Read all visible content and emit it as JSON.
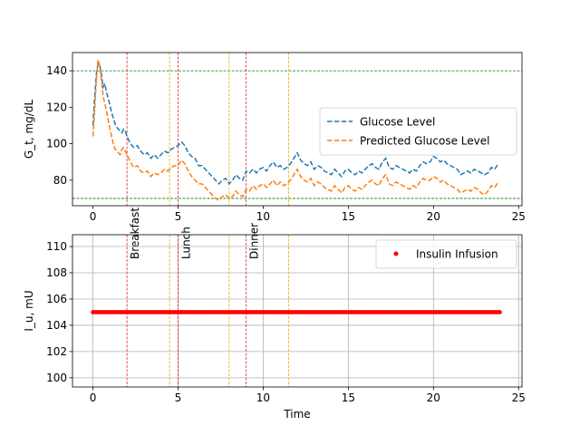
{
  "chart_data": [
    {
      "type": "line",
      "xlabel": "",
      "ylabel": "G_t, mg/dL",
      "xlim": [
        -1.2,
        25.2
      ],
      "ylim": [
        66,
        150
      ],
      "xticks": [
        0,
        5,
        10,
        15,
        20,
        25
      ],
      "yticks": [
        80,
        100,
        120,
        140
      ],
      "legend": {
        "placement": "center-right",
        "entries": [
          "Glucose Level",
          "Predicted Glucose Level"
        ]
      },
      "thresholds": [
        {
          "y": 140,
          "color": "#008000",
          "style": "dashed"
        },
        {
          "y": 70,
          "color": "#008000",
          "style": "dashed"
        }
      ],
      "meal_lines": [
        {
          "x": 2.0,
          "color": "#d62728",
          "label": "Breakfast"
        },
        {
          "x": 5.0,
          "color": "#d62728",
          "label": "Lunch"
        },
        {
          "x": 9.0,
          "color": "#d62728",
          "label": "Dinner"
        }
      ],
      "insulin_lines": [
        {
          "x": 4.5,
          "color": "#e0b000"
        },
        {
          "x": 8.0,
          "color": "#e0b000"
        },
        {
          "x": 11.5,
          "color": "#e0b000"
        }
      ],
      "series": [
        {
          "name": "Glucose Level",
          "color": "#1f77b4",
          "style": "dashed",
          "points": [
            [
              0,
              110
            ],
            [
              0.1,
              125
            ],
            [
              0.2,
              138
            ],
            [
              0.3,
              144
            ],
            [
              0.4,
              143
            ],
            [
              0.5,
              138
            ],
            [
              0.6,
              131
            ],
            [
              0.7,
              133
            ],
            [
              0.8,
              128
            ],
            [
              0.9,
              125
            ],
            [
              1.0,
              121
            ],
            [
              1.1,
              117
            ],
            [
              1.2,
              114
            ],
            [
              1.3,
              111
            ],
            [
              1.4,
              109
            ],
            [
              1.5,
              108
            ],
            [
              1.6,
              107
            ],
            [
              1.7,
              106
            ],
            [
              1.8,
              108
            ],
            [
              1.9,
              107
            ],
            [
              2.0,
              104
            ],
            [
              2.2,
              100
            ],
            [
              2.4,
              98
            ],
            [
              2.6,
              99
            ],
            [
              2.8,
              96
            ],
            [
              3.0,
              94
            ],
            [
              3.2,
              95
            ],
            [
              3.4,
              92
            ],
            [
              3.6,
              94
            ],
            [
              3.8,
              92
            ],
            [
              4.0,
              94
            ],
            [
              4.2,
              96
            ],
            [
              4.4,
              95
            ],
            [
              4.6,
              97
            ],
            [
              4.8,
              98
            ],
            [
              5.0,
              99
            ],
            [
              5.2,
              101
            ],
            [
              5.4,
              99
            ],
            [
              5.6,
              95
            ],
            [
              5.8,
              93
            ],
            [
              6.0,
              92
            ],
            [
              6.2,
              88
            ],
            [
              6.4,
              88
            ],
            [
              6.6,
              86
            ],
            [
              6.8,
              84
            ],
            [
              7.0,
              82
            ],
            [
              7.2,
              80
            ],
            [
              7.4,
              78
            ],
            [
              7.6,
              80
            ],
            [
              7.8,
              81
            ],
            [
              8.0,
              78
            ],
            [
              8.2,
              80
            ],
            [
              8.4,
              83
            ],
            [
              8.6,
              81
            ],
            [
              8.8,
              80
            ],
            [
              9.0,
              85
            ],
            [
              9.2,
              84
            ],
            [
              9.4,
              86
            ],
            [
              9.6,
              84
            ],
            [
              9.8,
              86
            ],
            [
              10.0,
              87
            ],
            [
              10.2,
              85
            ],
            [
              10.4,
              88
            ],
            [
              10.6,
              90
            ],
            [
              10.8,
              87
            ],
            [
              11.0,
              88
            ],
            [
              11.2,
              86
            ],
            [
              11.4,
              87
            ],
            [
              11.6,
              89
            ],
            [
              11.8,
              92
            ],
            [
              12.0,
              95
            ],
            [
              12.2,
              91
            ],
            [
              12.4,
              89
            ],
            [
              12.6,
              88
            ],
            [
              12.8,
              90
            ],
            [
              13.0,
              86
            ],
            [
              13.2,
              88
            ],
            [
              13.4,
              87
            ],
            [
              13.6,
              85
            ],
            [
              13.8,
              84
            ],
            [
              14.0,
              83
            ],
            [
              14.2,
              86
            ],
            [
              14.4,
              84
            ],
            [
              14.6,
              82
            ],
            [
              14.8,
              85
            ],
            [
              15.0,
              86
            ],
            [
              15.2,
              84
            ],
            [
              15.4,
              83
            ],
            [
              15.6,
              85
            ],
            [
              15.8,
              84
            ],
            [
              16.0,
              86
            ],
            [
              16.2,
              88
            ],
            [
              16.4,
              89
            ],
            [
              16.6,
              87
            ],
            [
              16.8,
              86
            ],
            [
              17.0,
              90
            ],
            [
              17.2,
              92
            ],
            [
              17.4,
              87
            ],
            [
              17.6,
              86
            ],
            [
              17.8,
              88
            ],
            [
              18.0,
              87
            ],
            [
              18.2,
              86
            ],
            [
              18.4,
              85
            ],
            [
              18.6,
              84
            ],
            [
              18.8,
              86
            ],
            [
              19.0,
              85
            ],
            [
              19.2,
              88
            ],
            [
              19.4,
              90
            ],
            [
              19.6,
              89
            ],
            [
              19.8,
              90
            ],
            [
              20.0,
              93
            ],
            [
              20.2,
              92
            ],
            [
              20.4,
              90
            ],
            [
              20.6,
              91
            ],
            [
              20.8,
              89
            ],
            [
              21.0,
              88
            ],
            [
              21.2,
              87
            ],
            [
              21.4,
              86
            ],
            [
              21.6,
              83
            ],
            [
              21.8,
              84
            ],
            [
              22.0,
              85
            ],
            [
              22.2,
              84
            ],
            [
              22.4,
              86
            ],
            [
              22.6,
              85
            ],
            [
              22.8,
              84
            ],
            [
              23.0,
              83
            ],
            [
              23.2,
              84
            ],
            [
              23.4,
              87
            ],
            [
              23.6,
              86
            ],
            [
              23.8,
              89
            ]
          ]
        },
        {
          "name": "Predicted Glucose Level",
          "color": "#ff7f0e",
          "style": "dashed",
          "points": [
            [
              0,
              104
            ],
            [
              0.1,
              118
            ],
            [
              0.2,
              135
            ],
            [
              0.3,
              146
            ],
            [
              0.4,
              143
            ],
            [
              0.5,
              135
            ],
            [
              0.6,
              126
            ],
            [
              0.7,
              122
            ],
            [
              0.8,
              118
            ],
            [
              0.9,
              113
            ],
            [
              1.0,
              108
            ],
            [
              1.1,
              104
            ],
            [
              1.2,
              100
            ],
            [
              1.3,
              97
            ],
            [
              1.4,
              96
            ],
            [
              1.5,
              95
            ],
            [
              1.6,
              94
            ],
            [
              1.7,
              97
            ],
            [
              1.8,
              98
            ],
            [
              1.9,
              96
            ],
            [
              2.0,
              94
            ],
            [
              2.2,
              90
            ],
            [
              2.4,
              87
            ],
            [
              2.6,
              88
            ],
            [
              2.8,
              85
            ],
            [
              3.0,
              84
            ],
            [
              3.2,
              85
            ],
            [
              3.4,
              82
            ],
            [
              3.6,
              84
            ],
            [
              3.8,
              83
            ],
            [
              4.0,
              84
            ],
            [
              4.2,
              86
            ],
            [
              4.4,
              85
            ],
            [
              4.6,
              87
            ],
            [
              4.8,
              88
            ],
            [
              5.0,
              88
            ],
            [
              5.2,
              91
            ],
            [
              5.4,
              89
            ],
            [
              5.6,
              85
            ],
            [
              5.8,
              82
            ],
            [
              6.0,
              80
            ],
            [
              6.2,
              78
            ],
            [
              6.4,
              78
            ],
            [
              6.6,
              76
            ],
            [
              6.8,
              74
            ],
            [
              7.0,
              72
            ],
            [
              7.2,
              70
            ],
            [
              7.4,
              69
            ],
            [
              7.6,
              71
            ],
            [
              7.8,
              72
            ],
            [
              8.0,
              70
            ],
            [
              8.2,
              71
            ],
            [
              8.4,
              74
            ],
            [
              8.6,
              72
            ],
            [
              8.8,
              71
            ],
            [
              9.0,
              75
            ],
            [
              9.2,
              74
            ],
            [
              9.4,
              77
            ],
            [
              9.6,
              75
            ],
            [
              9.8,
              77
            ],
            [
              10.0,
              78
            ],
            [
              10.2,
              76
            ],
            [
              10.4,
              78
            ],
            [
              10.6,
              80
            ],
            [
              10.8,
              77
            ],
            [
              11.0,
              79
            ],
            [
              11.2,
              77
            ],
            [
              11.4,
              78
            ],
            [
              11.6,
              80
            ],
            [
              11.8,
              83
            ],
            [
              12.0,
              86
            ],
            [
              12.2,
              82
            ],
            [
              12.4,
              80
            ],
            [
              12.6,
              79
            ],
            [
              12.8,
              81
            ],
            [
              13.0,
              77
            ],
            [
              13.2,
              79
            ],
            [
              13.4,
              78
            ],
            [
              13.6,
              76
            ],
            [
              13.8,
              75
            ],
            [
              14.0,
              74
            ],
            [
              14.2,
              77
            ],
            [
              14.4,
              75
            ],
            [
              14.6,
              73
            ],
            [
              14.8,
              76
            ],
            [
              15.0,
              77
            ],
            [
              15.2,
              75
            ],
            [
              15.4,
              74
            ],
            [
              15.6,
              76
            ],
            [
              15.8,
              75
            ],
            [
              16.0,
              77
            ],
            [
              16.2,
              79
            ],
            [
              16.4,
              80
            ],
            [
              16.6,
              78
            ],
            [
              16.8,
              77
            ],
            [
              17.0,
              81
            ],
            [
              17.2,
              83
            ],
            [
              17.4,
              78
            ],
            [
              17.6,
              77
            ],
            [
              17.8,
              79
            ],
            [
              18.0,
              78
            ],
            [
              18.2,
              77
            ],
            [
              18.4,
              76
            ],
            [
              18.6,
              75
            ],
            [
              18.8,
              77
            ],
            [
              19.0,
              76
            ],
            [
              19.2,
              79
            ],
            [
              19.4,
              81
            ],
            [
              19.6,
              80
            ],
            [
              19.8,
              80
            ],
            [
              20.0,
              82
            ],
            [
              20.2,
              81
            ],
            [
              20.4,
              79
            ],
            [
              20.6,
              80
            ],
            [
              20.8,
              78
            ],
            [
              21.0,
              77
            ],
            [
              21.2,
              76
            ],
            [
              21.4,
              75
            ],
            [
              21.6,
              73
            ],
            [
              21.8,
              74
            ],
            [
              22.0,
              75
            ],
            [
              22.2,
              74
            ],
            [
              22.4,
              76
            ],
            [
              22.6,
              75
            ],
            [
              22.8,
              73
            ],
            [
              23.0,
              72
            ],
            [
              23.2,
              74
            ],
            [
              23.4,
              77
            ],
            [
              23.6,
              76
            ],
            [
              23.8,
              79
            ]
          ]
        }
      ]
    },
    {
      "type": "scatter",
      "xlabel": "Time",
      "ylabel": "I_u, mU",
      "xlim": [
        -1.2,
        25.2
      ],
      "ylim": [
        99.3,
        110.9
      ],
      "xticks": [
        0,
        5,
        10,
        15,
        20,
        25
      ],
      "yticks": [
        100,
        102,
        104,
        106,
        108,
        110
      ],
      "grid": true,
      "legend": {
        "placement": "top-right",
        "entries": [
          "Insulin Infusion"
        ]
      },
      "meal_lines": [
        {
          "x": 2.0,
          "color": "#d62728"
        },
        {
          "x": 5.0,
          "color": "#d62728"
        },
        {
          "x": 9.0,
          "color": "#d62728"
        }
      ],
      "insulin_lines": [
        {
          "x": 4.5,
          "color": "#e0b000"
        },
        {
          "x": 8.0,
          "color": "#e0b000"
        },
        {
          "x": 11.5,
          "color": "#e0b000"
        }
      ],
      "series": [
        {
          "name": "Insulin Infusion",
          "color": "#ff0000",
          "x_start": 0,
          "x_end": 23.9,
          "x_step": 0.1,
          "value": 105
        }
      ]
    }
  ]
}
